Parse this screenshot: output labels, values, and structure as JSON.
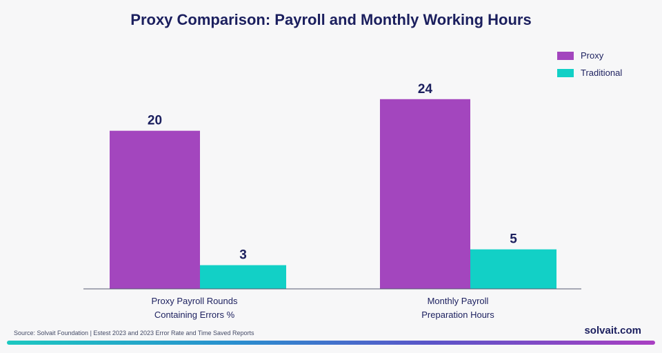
{
  "header": {
    "title": "Proxy Comparison: Payroll and Monthly Working Hours"
  },
  "legend": {
    "items": [
      {
        "label": "Proxy",
        "color": "#a346be"
      },
      {
        "label": "Traditional",
        "color": "#12d0c6"
      }
    ]
  },
  "chart_data": {
    "type": "bar",
    "title": "Proxy Comparison: Payroll and Monthly Working Hours",
    "categories": [
      [
        "Proxy Payroll Rounds",
        "Containing Errors %"
      ],
      [
        "Monthly Payroll",
        "Preparation Hours"
      ]
    ],
    "series": [
      {
        "name": "Proxy",
        "values": [
          20,
          24
        ],
        "color": "#a346be"
      },
      {
        "name": "Traditional",
        "values": [
          3,
          5
        ],
        "color": "#12d0c6"
      }
    ],
    "ylim": [
      0,
      30
    ],
    "grid": false,
    "legend": "top-right"
  },
  "footer": {
    "source": "Source: Solvait Foundation | Estest 2023 and 2023 Error Rate and Time Saved Reports",
    "brand": "solvait.com"
  }
}
